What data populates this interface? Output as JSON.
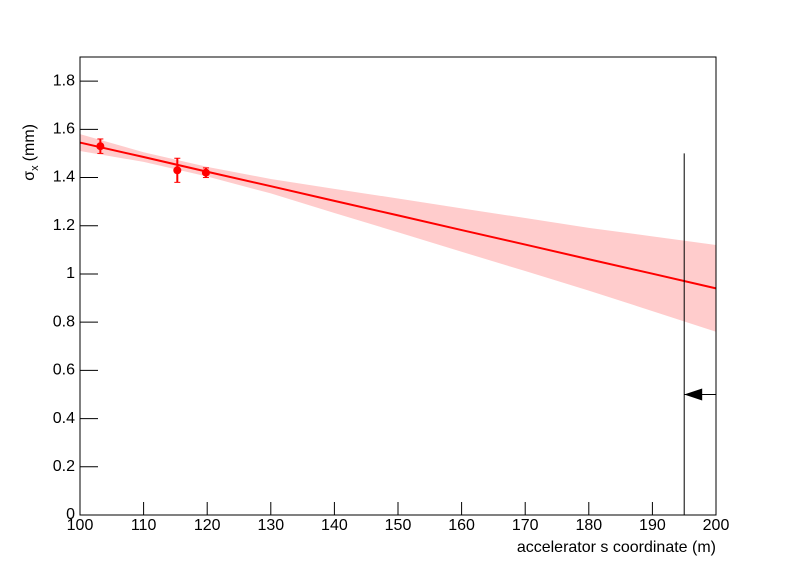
{
  "chart_data": {
    "type": "scatter",
    "xlabel": "accelerator s coordinate (m)",
    "ylabel": {
      "symbol": "σ",
      "subscript": "x",
      "unit": "(mm)"
    },
    "xlim": [
      100,
      200
    ],
    "xticks": [
      100,
      110,
      120,
      130,
      140,
      150,
      160,
      170,
      180,
      190,
      200
    ],
    "ylim": [
      0,
      1.9
    ],
    "yticks": [
      0,
      0.2,
      0.4,
      0.6,
      0.8,
      1,
      1.2,
      1.4,
      1.6,
      1.8
    ],
    "points": {
      "color": "#ff0000",
      "x": [
        103.2,
        115.3,
        119.8
      ],
      "values": [
        1.53,
        1.43,
        1.42
      ],
      "errors": [
        0.03,
        0.05,
        0.02
      ]
    },
    "fit": {
      "color": "#ff0000",
      "band_color": "#ffcccc",
      "x": [
        100,
        110,
        120,
        130,
        140,
        150,
        160,
        170,
        180,
        190,
        200
      ],
      "values": [
        1.545,
        1.485,
        1.424,
        1.364,
        1.303,
        1.243,
        1.182,
        1.122,
        1.061,
        1.001,
        0.94
      ],
      "lower": [
        1.51,
        1.465,
        1.404,
        1.334,
        1.253,
        1.173,
        1.092,
        1.012,
        0.931,
        0.846,
        0.76
      ],
      "upper": [
        1.58,
        1.505,
        1.444,
        1.394,
        1.353,
        1.313,
        1.272,
        1.232,
        1.191,
        1.156,
        1.12
      ]
    },
    "cut": {
      "x": 195,
      "ymax": 1.5,
      "arrow_y": 0.5
    }
  }
}
